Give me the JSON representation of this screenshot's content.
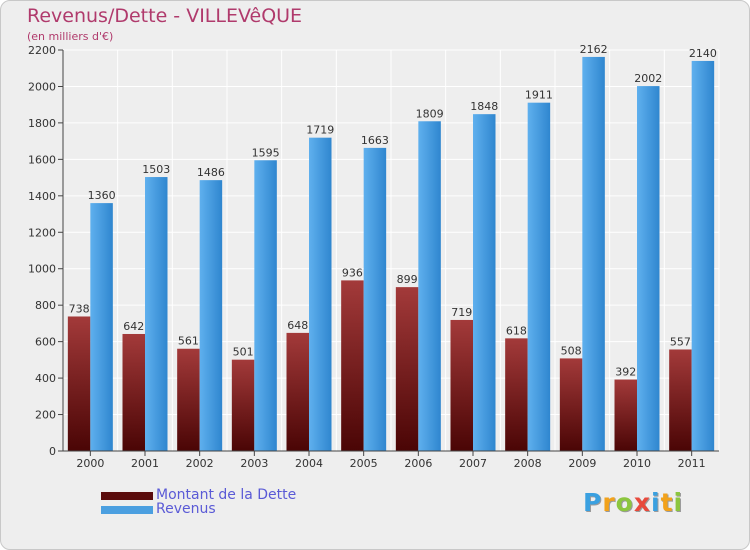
{
  "header": {
    "title": "Revenus/Dette - VILLEVêQUE",
    "subtitle": "(en milliers d'€)"
  },
  "chart_data": {
    "type": "bar",
    "title": "Revenus/Dette - VILLEVêQUE",
    "ylabel": "(en milliers d'€)",
    "xlabel": "",
    "ylim": [
      0,
      2200
    ],
    "yticks": [
      0,
      200,
      400,
      600,
      800,
      1000,
      1200,
      1400,
      1600,
      1800,
      2000,
      2200
    ],
    "grid": true,
    "legend_position": "bottom-left",
    "categories": [
      "2000",
      "2001",
      "2002",
      "2003",
      "2004",
      "2005",
      "2006",
      "2007",
      "2008",
      "2009",
      "2010",
      "2011"
    ],
    "series": [
      {
        "name": "Montant de la Dette",
        "color": "#7a1818",
        "values": [
          738,
          642,
          561,
          501,
          648,
          936,
          899,
          719,
          618,
          508,
          392,
          557
        ]
      },
      {
        "name": "Revenus",
        "color": "#4b9fe0",
        "values": [
          1360,
          1503,
          1486,
          1595,
          1719,
          1663,
          1809,
          1848,
          1911,
          2162,
          2002,
          2140
        ]
      }
    ]
  },
  "legend": {
    "items": [
      {
        "label": "Montant de la Dette",
        "color": "#5a0c0c"
      },
      {
        "label": "Revenus",
        "color": "#4b9fe0"
      }
    ]
  },
  "logo": {
    "letters": [
      "P",
      "r",
      "o",
      "x",
      "i",
      "t",
      "i"
    ],
    "colors": [
      "#3aa0e0",
      "#f2a21b",
      "#8cc63f",
      "#e84a3c",
      "#3aa0e0",
      "#f2a21b",
      "#8cc63f"
    ]
  }
}
